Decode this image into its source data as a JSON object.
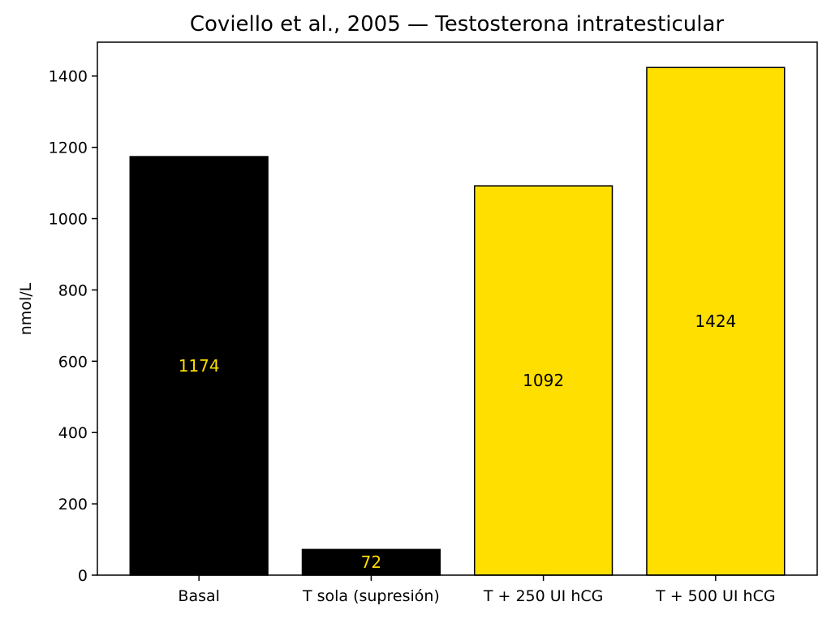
{
  "chart_data": {
    "type": "bar",
    "title": "Coviello et al., 2005 — Testosterona intratesticular",
    "xlabel": "",
    "ylabel": "nmol/L",
    "categories": [
      "Basal",
      "T sola (supresión)",
      "T + 250 UI hCG",
      "T + 500 UI hCG"
    ],
    "values": [
      1174,
      72,
      1092,
      1424
    ],
    "data_labels": [
      "1174",
      "72",
      "1092",
      "1424"
    ],
    "bar_colors": [
      "#000000",
      "#000000",
      "#ffdf00",
      "#ffdf00"
    ],
    "label_colors": [
      "#ffdf00",
      "#ffdf00",
      "#000000",
      "#000000"
    ],
    "ylim": [
      0,
      1495
    ],
    "yticks": [
      0,
      200,
      400,
      600,
      800,
      1000,
      1200,
      1400
    ],
    "grid": false,
    "legend": "none"
  }
}
